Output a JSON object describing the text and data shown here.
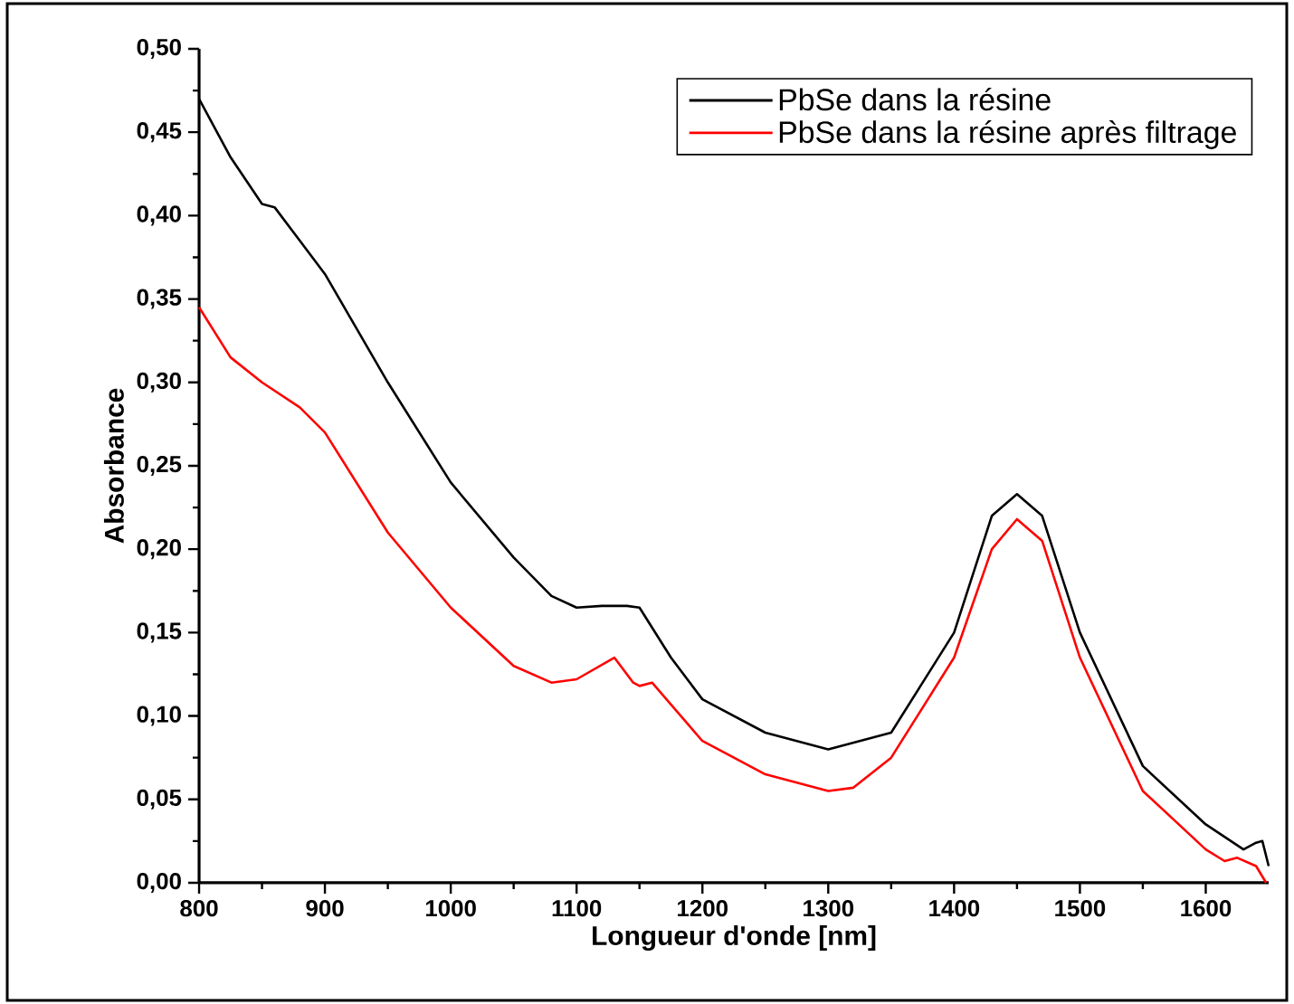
{
  "chart_data": {
    "type": "line",
    "xlabel": "Longueur d'onde [nm]",
    "ylabel": "Absorbance",
    "xlim": [
      800,
      1650
    ],
    "ylim": [
      0,
      0.5
    ],
    "xticks": [
      800,
      900,
      1000,
      1100,
      1200,
      1300,
      1400,
      1500,
      1600
    ],
    "yticks": [
      {
        "value": 0,
        "label": "0,00"
      },
      {
        "value": 0.05,
        "label": "0,05"
      },
      {
        "value": 0.1,
        "label": "0,10"
      },
      {
        "value": 0.15,
        "label": "0,15"
      },
      {
        "value": 0.2,
        "label": "0,20"
      },
      {
        "value": 0.25,
        "label": "0,25"
      },
      {
        "value": 0.3,
        "label": "0,30"
      },
      {
        "value": 0.35,
        "label": "0,35"
      },
      {
        "value": 0.4,
        "label": "0,40"
      },
      {
        "value": 0.45,
        "label": "0,45"
      },
      {
        "value": 0.5,
        "label": "0,50"
      }
    ],
    "grid": false,
    "legend": "top right",
    "marker": "none",
    "line_style": "solid",
    "series": [
      {
        "name": "PbSe dans la résine",
        "color": "#000000",
        "x": [
          800,
          825,
          850,
          860,
          880,
          900,
          950,
          1000,
          1050,
          1080,
          1100,
          1120,
          1140,
          1150,
          1175,
          1200,
          1250,
          1300,
          1350,
          1400,
          1430,
          1450,
          1470,
          1500,
          1550,
          1600,
          1620,
          1630,
          1640,
          1645,
          1650
        ],
        "values": [
          0.47,
          0.435,
          0.407,
          0.405,
          0.385,
          0.365,
          0.3,
          0.24,
          0.195,
          0.172,
          0.165,
          0.166,
          0.166,
          0.165,
          0.135,
          0.11,
          0.09,
          0.08,
          0.09,
          0.15,
          0.22,
          0.233,
          0.22,
          0.15,
          0.07,
          0.035,
          0.025,
          0.02,
          0.024,
          0.025,
          0.01
        ]
      },
      {
        "name": "PbSe dans la résine après filtrage",
        "color": "#ff0000",
        "x": [
          800,
          825,
          850,
          880,
          900,
          950,
          1000,
          1050,
          1080,
          1100,
          1130,
          1145,
          1150,
          1160,
          1200,
          1250,
          1300,
          1320,
          1350,
          1400,
          1430,
          1450,
          1470,
          1500,
          1550,
          1600,
          1615,
          1625,
          1640,
          1648
        ],
        "values": [
          0.345,
          0.315,
          0.3,
          0.285,
          0.27,
          0.21,
          0.165,
          0.13,
          0.12,
          0.122,
          0.135,
          0.12,
          0.118,
          0.12,
          0.085,
          0.065,
          0.055,
          0.057,
          0.075,
          0.135,
          0.2,
          0.218,
          0.205,
          0.135,
          0.055,
          0.02,
          0.013,
          0.015,
          0.01,
          0.0
        ]
      }
    ]
  }
}
